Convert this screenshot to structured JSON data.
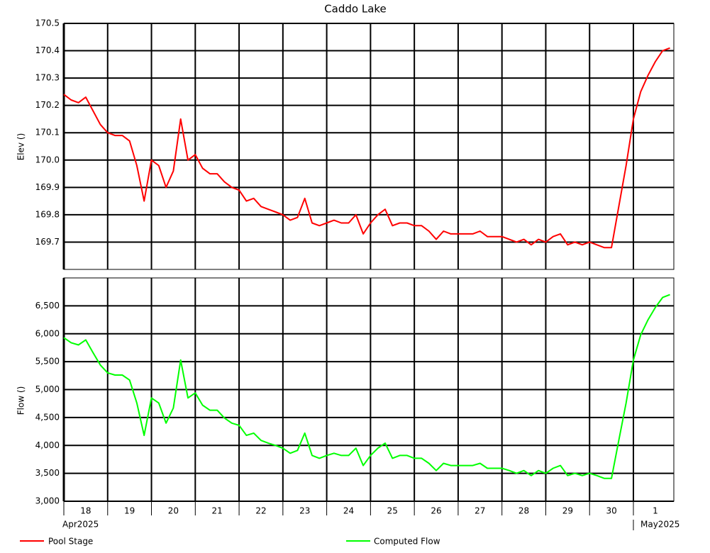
{
  "chart_data": {
    "type": "line",
    "title": "Caddo Lake",
    "categories": [
      null,
      null,
      null,
      "18",
      null,
      null,
      null,
      null,
      null,
      "19",
      null,
      null,
      null,
      null,
      null,
      "20",
      null,
      null,
      null,
      null,
      null,
      "21",
      null,
      null,
      null,
      null,
      null,
      "22",
      null,
      null,
      null,
      null,
      null,
      "23",
      null,
      null,
      null,
      null,
      null,
      "24",
      null,
      null,
      null,
      null,
      null,
      "25",
      null,
      null,
      null,
      null,
      null,
      "26",
      null,
      null,
      null,
      null,
      null,
      "27",
      null,
      null,
      null,
      null,
      null,
      "28",
      null,
      null,
      null,
      null,
      null,
      "29",
      null,
      null,
      null,
      null,
      null,
      "30",
      null,
      null,
      null,
      null,
      null,
      "1",
      null,
      null
    ],
    "x_group_labels": [
      "Apr2025",
      "May2025"
    ],
    "ylabel": "Elev ()",
    "y2label": "Flow ()",
    "ylim": [
      169.6,
      170.5
    ],
    "yticks": [
      169.7,
      169.8,
      169.9,
      {
        "value": 170,
        "label": "170.0"
      },
      170.1,
      170.2,
      170.3,
      170.4,
      170.5
    ],
    "y2lim": [
      3000,
      7000
    ],
    "y2ticks": [
      {
        "value": 3000,
        "label": "3,000"
      },
      {
        "value": 3500,
        "label": "3,500"
      },
      {
        "value": 4000,
        "label": "4,000"
      },
      {
        "value": 4500,
        "label": "4,500"
      },
      {
        "value": 5000,
        "label": "5,000"
      },
      {
        "value": 5500,
        "label": "5,500"
      },
      {
        "value": 6000,
        "label": "6,000"
      },
      {
        "value": 6500,
        "label": "6,500"
      }
    ],
    "grid": true,
    "series": [
      {
        "name": "Pool Stage",
        "color": "#ff0000",
        "axis": "y",
        "values": [
          170.24,
          170.22,
          170.21,
          170.23,
          170.18,
          170.13,
          170.1,
          170.09,
          170.09,
          170.07,
          169.98,
          169.85,
          170.0,
          169.98,
          169.9,
          169.96,
          170.15,
          170.0,
          170.02,
          169.97,
          169.95,
          169.95,
          169.92,
          169.9,
          169.89,
          169.85,
          169.86,
          169.83,
          169.82,
          169.81,
          169.8,
          169.78,
          169.79,
          169.86,
          169.77,
          169.76,
          169.77,
          169.78,
          169.77,
          169.77,
          169.8,
          169.73,
          169.77,
          169.8,
          169.82,
          169.76,
          169.77,
          169.77,
          169.76,
          169.76,
          169.74,
          169.71,
          169.74,
          169.73,
          169.73,
          169.73,
          169.73,
          169.74,
          169.72,
          169.72,
          169.72,
          169.71,
          169.7,
          169.71,
          169.69,
          169.71,
          169.7,
          169.72,
          169.73,
          169.69,
          169.7,
          169.69,
          169.7,
          169.69,
          169.68,
          169.68,
          169.83,
          169.98,
          170.15,
          170.25,
          170.31,
          170.36,
          170.4,
          170.41
        ]
      },
      {
        "name": "Computed Flow",
        "color": "#00ff00",
        "axis": "y2",
        "values": [
          5930,
          5840,
          5800,
          5890,
          5660,
          5440,
          5300,
          5260,
          5260,
          5170,
          4760,
          4180,
          4850,
          4760,
          4400,
          4670,
          5530,
          4850,
          4940,
          4720,
          4630,
          4630,
          4490,
          4400,
          4360,
          4180,
          4220,
          4090,
          4040,
          4000,
          3950,
          3860,
          3910,
          4220,
          3820,
          3770,
          3820,
          3860,
          3820,
          3820,
          3950,
          3640,
          3820,
          3950,
          4040,
          3770,
          3820,
          3820,
          3770,
          3770,
          3680,
          3550,
          3680,
          3640,
          3640,
          3640,
          3640,
          3680,
          3590,
          3590,
          3590,
          3550,
          3500,
          3550,
          3460,
          3550,
          3500,
          3590,
          3640,
          3460,
          3500,
          3460,
          3500,
          3460,
          3410,
          3410,
          4090,
          4760,
          5530,
          5980,
          6250,
          6470,
          6650,
          6700
        ]
      }
    ]
  }
}
